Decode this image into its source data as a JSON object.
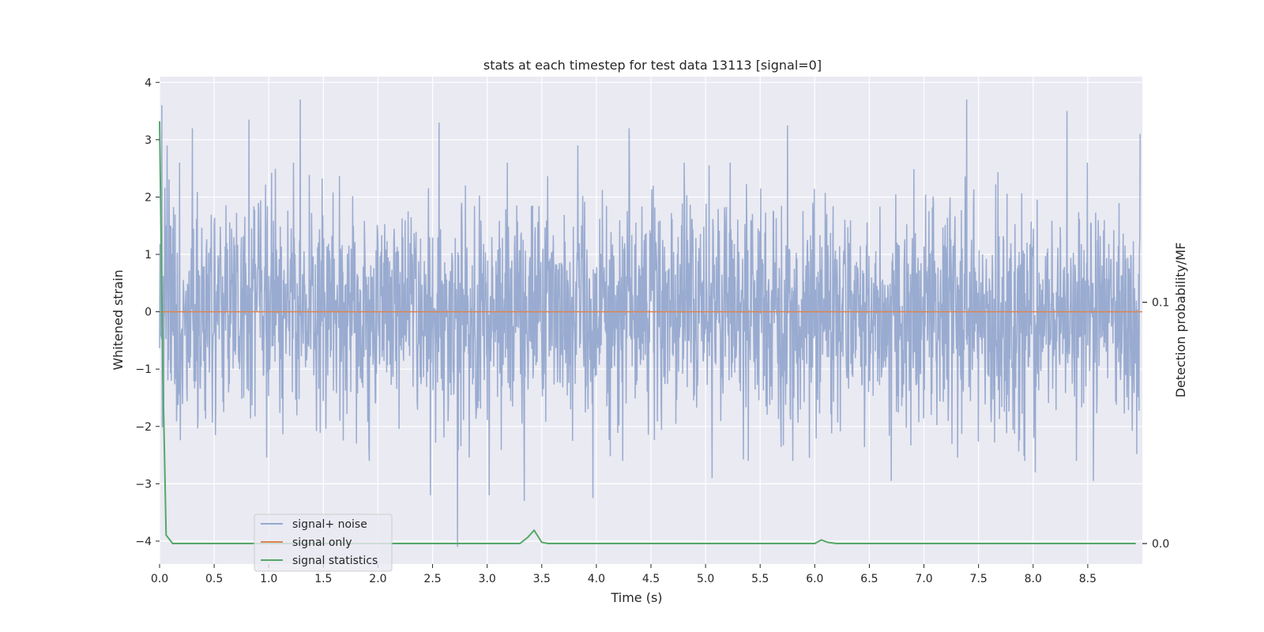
{
  "chart_data": {
    "type": "line",
    "title": "stats at each timestep for test data 13113 [signal=0]",
    "xlabel": "Time (s)",
    "ylabel": "Whitened strain",
    "y2label": "Detection probability/MF",
    "xlim": [
      0.0,
      9.0
    ],
    "ylim": [
      -4.4,
      4.1
    ],
    "y2lim": [
      -0.0085,
      0.1935
    ],
    "xticks": [
      "0.0",
      "0.5",
      "1.0",
      "1.5",
      "2.0",
      "2.5",
      "3.0",
      "3.5",
      "4.0",
      "4.5",
      "5.0",
      "5.5",
      "6.0",
      "6.5",
      "7.0",
      "7.5",
      "8.0",
      "8.5"
    ],
    "yticks": [
      "4",
      "3",
      "2",
      "1",
      "0",
      "−1",
      "−2",
      "−3",
      "−4"
    ],
    "y2ticks": [
      "0.1",
      "0.0"
    ],
    "grid": true,
    "legend_position": "lower-left",
    "series": [
      {
        "name": "signal+ noise",
        "color": "#95A8CE",
        "axis": "left",
        "description_peaks": {
          "x": [
            0.02,
            0.07,
            0.3,
            0.82,
            1.29,
            2.56,
            3.83,
            4.3,
            5.75,
            7.39,
            8.31,
            8.98
          ],
          "y": [
            3.6,
            2.9,
            3.2,
            3.35,
            3.7,
            3.3,
            2.9,
            3.2,
            3.25,
            3.7,
            3.5,
            3.1
          ]
        },
        "description_troughs": {
          "x": [
            0.03,
            2.48,
            2.73,
            3.02,
            3.34,
            3.97,
            5.06,
            6.7,
            8.02,
            8.55
          ],
          "y": [
            -2.0,
            -3.2,
            -4.1,
            -3.2,
            -3.3,
            -3.25,
            -2.9,
            -2.95,
            -2.8,
            -2.95
          ]
        }
      },
      {
        "name": "signal only",
        "color": "#DD8452",
        "axis": "left",
        "x": [
          0.0,
          9.0
        ],
        "y": [
          0.0,
          0.0
        ]
      },
      {
        "name": "signal statistics",
        "color": "#55A868",
        "axis": "right",
        "x": [
          0.0,
          0.03,
          0.06,
          0.12,
          0.5,
          1.0,
          2.0,
          3.0,
          3.3,
          3.37,
          3.43,
          3.5,
          3.56,
          4.0,
          5.0,
          6.0,
          6.06,
          6.12,
          6.2,
          7.0,
          8.0,
          8.94
        ],
        "y": [
          0.175,
          0.07,
          0.0035,
          0.0,
          0.0,
          0.0,
          0.0,
          0.0,
          0.0,
          0.0025,
          0.0055,
          0.0005,
          0.0,
          0.0,
          0.0,
          0.0,
          0.0015,
          0.0005,
          0.0,
          0.0,
          0.0,
          0.0
        ]
      }
    ],
    "seed": 13113
  }
}
